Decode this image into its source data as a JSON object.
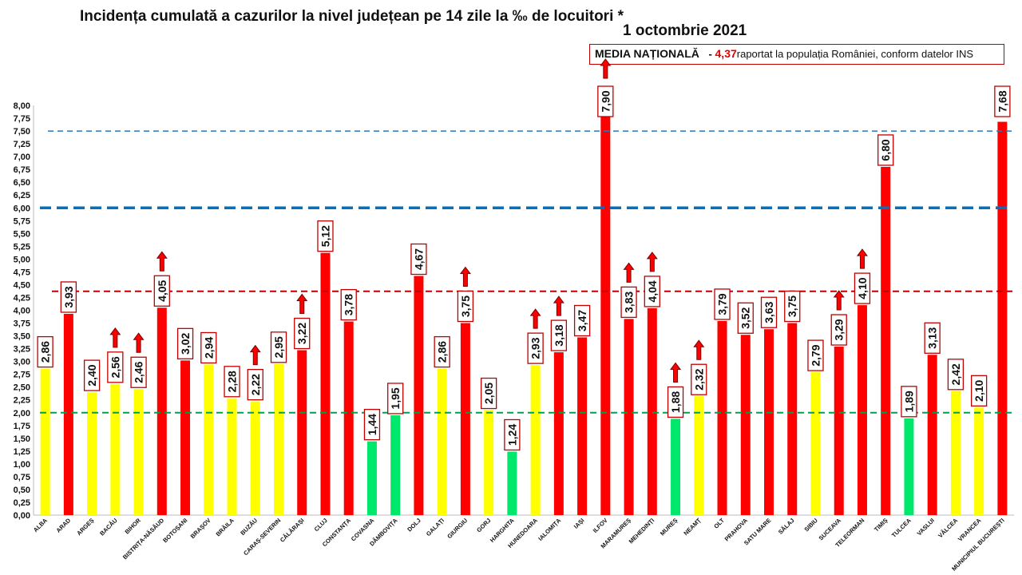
{
  "header": {
    "title": "Incidența cumulată a cazurilor la nivel județean pe 14 zile la ‰ de locuitori *",
    "date": "1 octombrie 2021"
  },
  "legend": {
    "label": "MEDIA NAȚIONALĂ",
    "dash": "-",
    "value": "4,37",
    "text": "raportat la populația României, conform datelor INS"
  },
  "colors": {
    "red": "#ff0000",
    "yellow": "#ffff00",
    "green": "#00e86b"
  },
  "chart_data": {
    "type": "bar",
    "title": "Incidența cumulată a cazurilor la nivel județean pe 14 zile la ‰ de locuitori *",
    "ylim": [
      0,
      8
    ],
    "yticks": [
      "0,00",
      "0,25",
      "0,50",
      "0,75",
      "1,00",
      "1,25",
      "1,50",
      "1,75",
      "2,00",
      "2,25",
      "2,50",
      "2,75",
      "3,00",
      "3,25",
      "3,50",
      "3,75",
      "4,00",
      "4,25",
      "4,50",
      "4,75",
      "5,00",
      "5,25",
      "5,50",
      "5,75",
      "6,00",
      "6,25",
      "6,50",
      "6,75",
      "7,00",
      "7,25",
      "7,50",
      "7,75",
      "8,00"
    ],
    "reference_lines": [
      {
        "value": 7.5,
        "color": "#2e75b6",
        "style": "dashed-thin"
      },
      {
        "value": 6.0,
        "color": "#0070c0",
        "style": "dashed-thick"
      },
      {
        "value": 4.37,
        "color": "#c00000",
        "style": "dashed"
      },
      {
        "value": 2.0,
        "color": "#00a050",
        "style": "dashed"
      }
    ],
    "categories": [
      "ALBA",
      "ARAD",
      "ARGEȘ",
      "BACĂU",
      "BIHOR",
      "BISTRIȚA-NĂSĂUD",
      "BOTOȘANI",
      "BRAȘOV",
      "BRĂILA",
      "BUZĂU",
      "CARAȘ-SEVERIN",
      "CĂLĂRAȘI",
      "CLUJ",
      "CONSTANȚA",
      "COVASNA",
      "DÂMBOVIȚA",
      "DOLJ",
      "GALAȚI",
      "GIURGIU",
      "GORJ",
      "HARGHITA",
      "HUNEDOARA",
      "IALOMIȚA",
      "IAȘI",
      "ILFOV",
      "MARAMUREȘ",
      "MEHEDINȚI",
      "MUREȘ",
      "NEAMȚ",
      "OLT",
      "PRAHOVA",
      "SATU MARE",
      "SĂLAJ",
      "SIBIU",
      "SUCEAVA",
      "TELEORMAN",
      "TIMIȘ",
      "TULCEA",
      "VASLUI",
      "VÂLCEA",
      "VRANCEA",
      "MUNICIPIUL BUCUREȘTI"
    ],
    "values": [
      2.86,
      3.93,
      2.4,
      2.56,
      2.46,
      4.05,
      3.02,
      2.94,
      2.28,
      2.22,
      2.95,
      3.22,
      5.12,
      3.78,
      1.44,
      1.95,
      4.67,
      2.86,
      3.75,
      2.05,
      1.24,
      2.93,
      3.18,
      3.47,
      7.9,
      3.83,
      4.04,
      1.88,
      2.32,
      3.79,
      3.52,
      3.63,
      3.75,
      2.79,
      3.29,
      4.1,
      6.8,
      1.89,
      3.13,
      2.42,
      2.1,
      7.68
    ],
    "labels": [
      "2,86",
      "3,93",
      "2,40",
      "2,56",
      "2,46",
      "4,05",
      "3,02",
      "2,94",
      "2,28",
      "2,22",
      "2,95",
      "3,22",
      "5,12",
      "3,78",
      "1,44",
      "1,95",
      "4,67",
      "2,86",
      "3,75",
      "2,05",
      "1,24",
      "2,93",
      "3,18",
      "3,47",
      "7,90",
      "3,83",
      "4,04",
      "1,88",
      "2,32",
      "3,79",
      "3,52",
      "3,63",
      "3,75",
      "2,79",
      "3,29",
      "4,10",
      "6,80",
      "1,89",
      "3,13",
      "2,42",
      "2,10",
      "7,68"
    ],
    "bar_colors": [
      "yellow",
      "red",
      "yellow",
      "yellow",
      "yellow",
      "red",
      "red",
      "yellow",
      "yellow",
      "yellow",
      "yellow",
      "red",
      "red",
      "red",
      "green",
      "green",
      "red",
      "yellow",
      "red",
      "yellow",
      "green",
      "yellow",
      "red",
      "red",
      "red",
      "red",
      "red",
      "green",
      "yellow",
      "red",
      "red",
      "red",
      "red",
      "yellow",
      "red",
      "red",
      "red",
      "green",
      "red",
      "yellow",
      "yellow",
      "red"
    ],
    "trend_up": [
      "BACĂU",
      "BIHOR",
      "BISTRIȚA-NĂSĂUD",
      "BUZĂU",
      "CĂLĂRAȘI",
      "GIURGIU",
      "HUNEDOARA",
      "IALOMIȚA",
      "ILFOV",
      "MARAMUREȘ",
      "MEHEDINȚI",
      "MUREȘ",
      "NEAMȚ",
      "SUCEAVA",
      "TELEORMAN"
    ]
  }
}
